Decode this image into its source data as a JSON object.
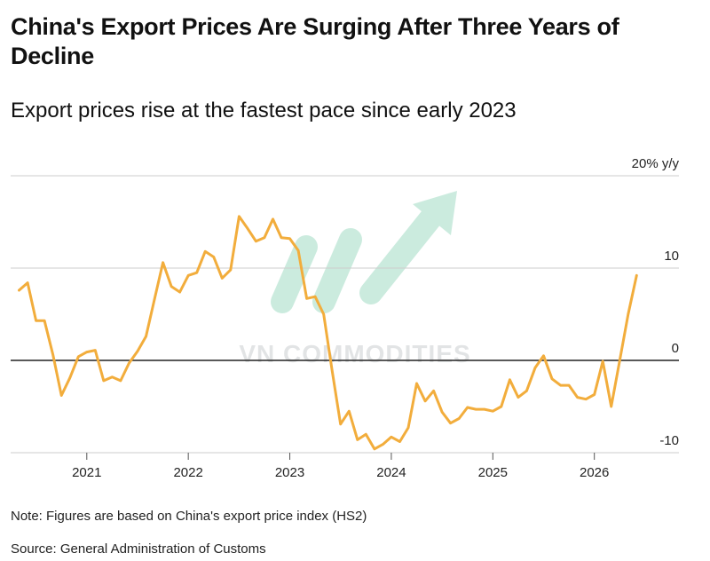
{
  "header": {
    "title": "China's Export Prices Are Surging After Three Years of Decline",
    "subtitle": "Export prices rise at the fastest pace since early 2023"
  },
  "footer": {
    "note": "Note: Figures are based on China's export price index (HS2)",
    "source": "Source: General Administration of Customs"
  },
  "watermark": {
    "text": "VN COMMODITIES"
  },
  "colors": {
    "line": "#f2ad3c",
    "grid": "#cccccc",
    "zero": "#222222",
    "watermark": "#5fc29a"
  },
  "chart_data": {
    "type": "line",
    "title": "China's Export Prices Are Surging After Three Years of Decline",
    "subtitle": "Export prices rise at the fastest pace since early 2023",
    "y_unit_label": "20% y/y",
    "ylim": [
      -10,
      20
    ],
    "yticks": [
      {
        "value": 20,
        "label": "20% y/y"
      },
      {
        "value": 10,
        "label": "10"
      },
      {
        "value": 0,
        "label": "0"
      },
      {
        "value": -10,
        "label": "-10"
      }
    ],
    "xticks": [
      "2021",
      "2022",
      "2023",
      "2024",
      "2025",
      "2026"
    ],
    "xlim": [
      "2020-04",
      "2026-11"
    ],
    "grid": true,
    "series": [
      {
        "x": [
          "2020-05",
          "2020-06",
          "2020-07",
          "2020-08",
          "2020-09",
          "2020-10",
          "2020-11",
          "2020-12",
          "2021-01",
          "2021-02",
          "2021-03",
          "2021-04",
          "2021-05",
          "2021-06",
          "2021-07",
          "2021-08",
          "2021-09",
          "2021-10",
          "2021-11",
          "2021-12",
          "2022-01",
          "2022-02",
          "2022-03",
          "2022-04",
          "2022-05",
          "2022-06",
          "2022-07",
          "2022-08",
          "2022-09",
          "2022-10",
          "2022-11",
          "2022-12",
          "2023-01",
          "2023-02",
          "2023-03",
          "2023-04",
          "2023-05",
          "2023-06",
          "2023-07",
          "2023-08",
          "2023-09",
          "2023-10",
          "2023-11",
          "2023-12",
          "2024-01",
          "2024-02",
          "2024-03",
          "2024-04",
          "2024-05",
          "2024-06",
          "2024-07",
          "2024-08",
          "2024-09",
          "2024-10",
          "2024-11",
          "2024-12",
          "2025-01",
          "2025-02",
          "2025-03",
          "2025-04",
          "2025-05",
          "2025-06",
          "2025-07",
          "2025-08",
          "2025-09",
          "2025-10",
          "2025-11",
          "2025-12",
          "2026-01",
          "2026-02",
          "2026-03",
          "2026-04",
          "2026-05",
          "2026-06"
        ],
        "values": [
          7.6,
          8.4,
          4.3,
          4.3,
          0.6,
          -3.8,
          -1.9,
          0.4,
          0.9,
          1.1,
          -2.2,
          -1.8,
          -2.2,
          -0.3,
          1.0,
          2.6,
          6.6,
          10.6,
          8.0,
          7.4,
          9.2,
          9.5,
          11.8,
          11.2,
          8.9,
          9.8,
          15.6,
          14.3,
          12.9,
          13.3,
          15.3,
          13.3,
          13.2,
          11.9,
          6.7,
          6.9,
          5.0,
          -1.1,
          -6.9,
          -5.5,
          -8.6,
          -8.0,
          -9.6,
          -9.1,
          -8.3,
          -8.8,
          -7.3,
          -2.5,
          -4.4,
          -3.3,
          -5.6,
          -6.8,
          -6.3,
          -5.1,
          -5.3,
          -5.3,
          -5.5,
          -5.0,
          -2.1,
          -4.0,
          -3.3,
          -0.8,
          0.5,
          -2.0,
          -2.7,
          -2.7,
          -4.0,
          -4.2,
          -3.7,
          -0.1,
          -5.0,
          0.0,
          5.0,
          9.2
        ]
      }
    ]
  }
}
